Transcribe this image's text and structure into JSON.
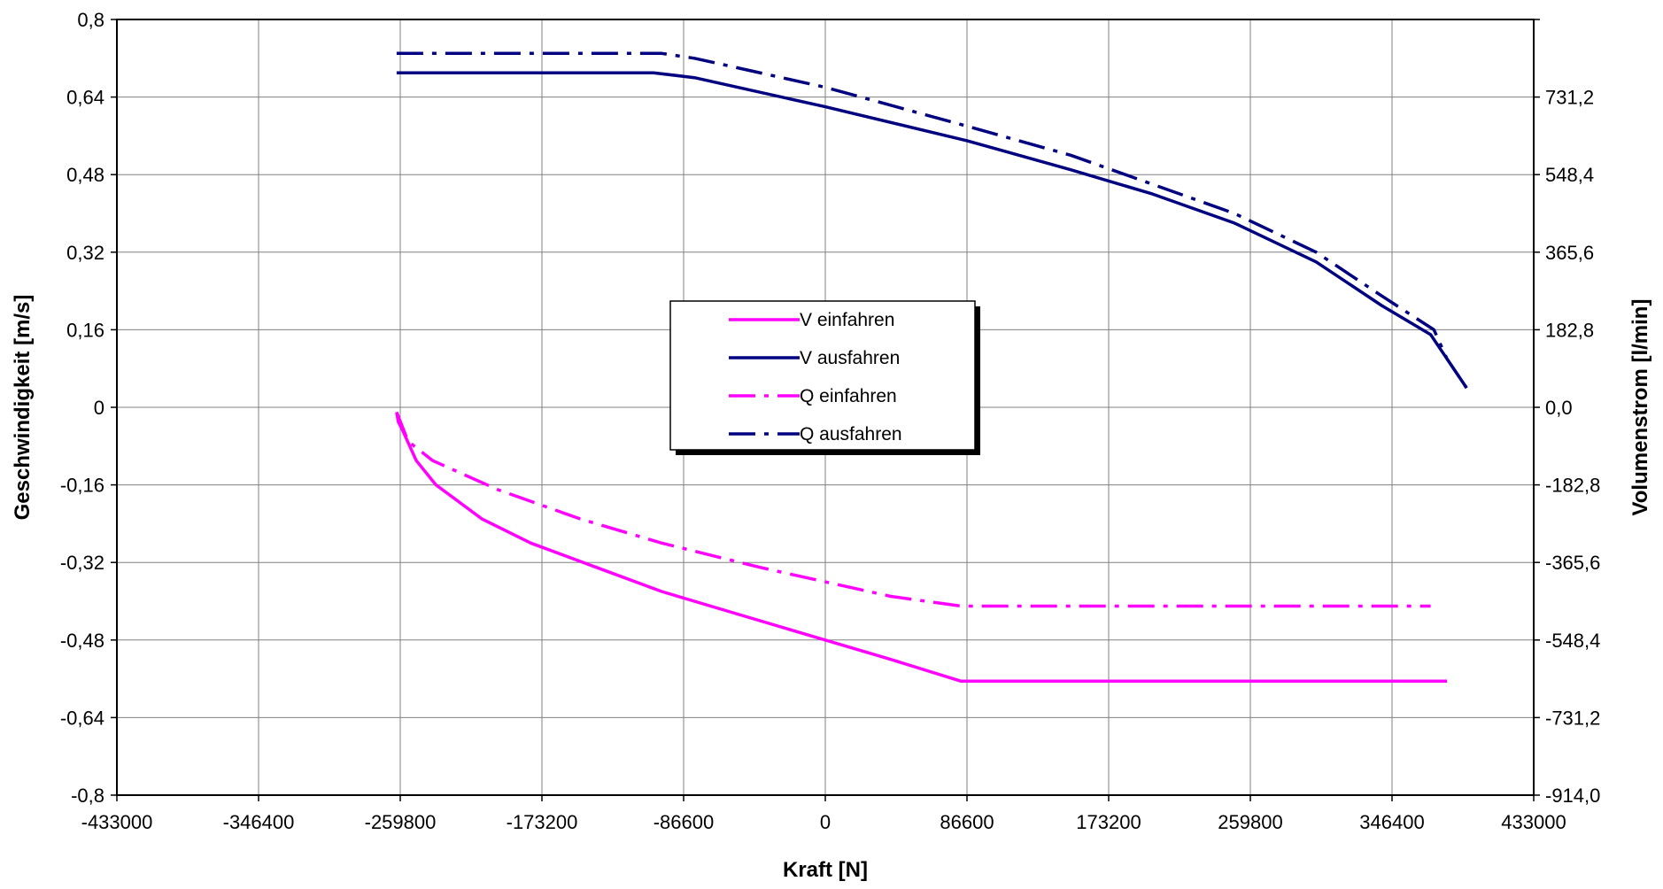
{
  "chart_data": {
    "type": "line",
    "title": "",
    "xlabel": "Kraft [N]",
    "ylabel": "Geschwindigkeit [m/s]",
    "y2label": "Volumenstrom [l/min]",
    "xlim": [
      -433000,
      433000
    ],
    "ylim": [
      -0.8,
      0.8
    ],
    "y2lim": [
      -914.0,
      914.0
    ],
    "grid": true,
    "legend_position": "center",
    "x_ticks": [
      "-433000",
      "-346400",
      "-259800",
      "-173200",
      "-86600",
      "0",
      "86600",
      "173200",
      "259800",
      "346400",
      "433000"
    ],
    "y_ticks": [
      "0,8",
      "0,64",
      "0,48",
      "0,32",
      "0,16",
      "0",
      "-0,16",
      "-0,32",
      "-0,48",
      "-0,64",
      "-0,8"
    ],
    "y2_ticks": [
      "",
      "731,2",
      "548,4",
      "365,6",
      "182,8",
      "0,0",
      "-182,8",
      "-365,6",
      "-548,4",
      "-731,2",
      "-914,0"
    ],
    "series": [
      {
        "name": "V einfahren",
        "axis": "left",
        "color": "#ff00ff",
        "dash": "solid",
        "points": [
          [
            -262000,
            -0.01
          ],
          [
            -261000,
            -0.03
          ],
          [
            -258000,
            -0.05
          ],
          [
            -250000,
            -0.11
          ],
          [
            -238000,
            -0.16
          ],
          [
            -210000,
            -0.23
          ],
          [
            -180000,
            -0.28
          ],
          [
            -140000,
            -0.33
          ],
          [
            -100000,
            -0.38
          ],
          [
            -60000,
            -0.42
          ],
          [
            -20000,
            -0.46
          ],
          [
            40000,
            -0.52
          ],
          [
            83000,
            -0.565
          ],
          [
            380000,
            -0.565
          ]
        ]
      },
      {
        "name": "V ausfahren",
        "axis": "left",
        "color": "#000080",
        "dash": "solid",
        "points": [
          [
            -262000,
            0.69
          ],
          [
            -105000,
            0.69
          ],
          [
            -80000,
            0.68
          ],
          [
            0,
            0.62
          ],
          [
            86600,
            0.55
          ],
          [
            150000,
            0.49
          ],
          [
            200000,
            0.44
          ],
          [
            250000,
            0.38
          ],
          [
            300000,
            0.3
          ],
          [
            340000,
            0.21
          ],
          [
            370000,
            0.15
          ],
          [
            380000,
            0.1
          ],
          [
            392000,
            0.04
          ]
        ]
      },
      {
        "name": "Q einfahren",
        "axis": "left",
        "color": "#ff00ff",
        "dash": "dashdot",
        "points": [
          [
            -262000,
            -0.01
          ],
          [
            -255000,
            -0.07
          ],
          [
            -240000,
            -0.11
          ],
          [
            -200000,
            -0.17
          ],
          [
            -150000,
            -0.23
          ],
          [
            -100000,
            -0.28
          ],
          [
            -40000,
            -0.33
          ],
          [
            0,
            -0.36
          ],
          [
            40000,
            -0.39
          ],
          [
            83000,
            -0.41
          ],
          [
            370000,
            -0.41
          ]
        ]
      },
      {
        "name": "Q ausfahren",
        "axis": "left",
        "color": "#000080",
        "dash": "dashdot",
        "points": [
          [
            -262000,
            0.73
          ],
          [
            -100000,
            0.73
          ],
          [
            -80000,
            0.72
          ],
          [
            0,
            0.66
          ],
          [
            86600,
            0.58
          ],
          [
            150000,
            0.52
          ],
          [
            200000,
            0.46
          ],
          [
            250000,
            0.4
          ],
          [
            300000,
            0.32
          ],
          [
            340000,
            0.23
          ],
          [
            372000,
            0.16
          ],
          [
            380000,
            0.1
          ],
          [
            392000,
            0.04
          ]
        ]
      }
    ]
  }
}
